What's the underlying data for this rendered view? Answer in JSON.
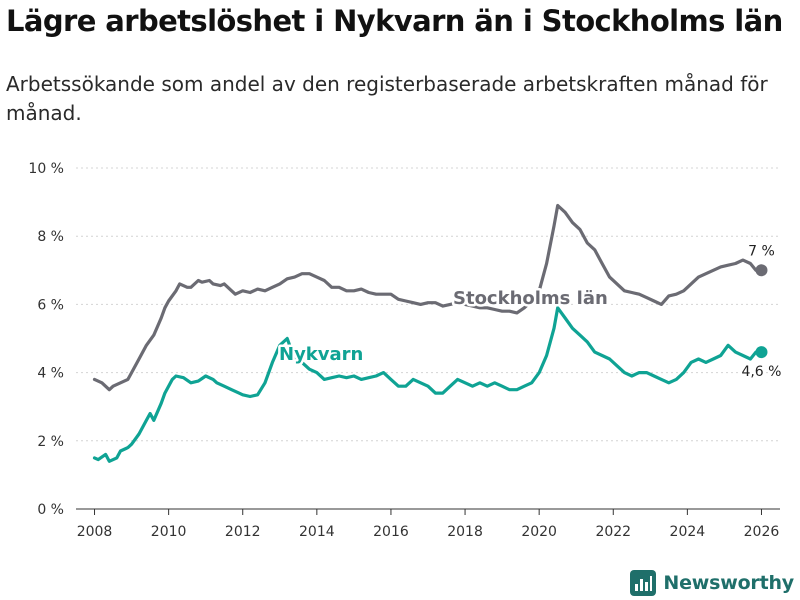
{
  "page": {
    "title": "Lägre arbetslöshet i Nykvarn än i Stockholms län",
    "subtitle": "Arbetssökande som andel av den registerbaserade arbetskraften månad för månad.",
    "brand": "Newsworthy"
  },
  "colors": {
    "stockholm": "#6b6b73",
    "nykvarn": "#0fa394",
    "grid": "#d4d4d4",
    "axis": "#333333",
    "brand": "#1f6f6a"
  },
  "chart_data": {
    "type": "line",
    "title": "Lägre arbetslöshet i Nykvarn än i Stockholms län",
    "xlabel": "",
    "ylabel": "",
    "xlim": [
      2007.5,
      2026.5
    ],
    "ylim": [
      0,
      10
    ],
    "y_ticks": [
      0,
      2,
      4,
      6,
      8,
      10
    ],
    "y_tick_labels": [
      "0 %",
      "2 %",
      "4 %",
      "6 %",
      "8 %",
      "10 %"
    ],
    "x_ticks": [
      2008,
      2010,
      2012,
      2014,
      2016,
      2018,
      2020,
      2022,
      2024,
      2026
    ],
    "x_tick_labels": [
      "2008",
      "2010",
      "2012",
      "2014",
      "2016",
      "2018",
      "2020",
      "2022",
      "2024",
      "2026"
    ],
    "grid": true,
    "series": [
      {
        "name": "Stockholms län",
        "end_label": "7 %",
        "points": [
          [
            2008.0,
            3.8
          ],
          [
            2008.2,
            3.7
          ],
          [
            2008.4,
            3.5
          ],
          [
            2008.5,
            3.6
          ],
          [
            2008.7,
            3.7
          ],
          [
            2008.9,
            3.8
          ],
          [
            2009.0,
            4.0
          ],
          [
            2009.2,
            4.4
          ],
          [
            2009.4,
            4.8
          ],
          [
            2009.6,
            5.1
          ],
          [
            2009.8,
            5.6
          ],
          [
            2009.9,
            5.9
          ],
          [
            2010.0,
            6.1
          ],
          [
            2010.2,
            6.4
          ],
          [
            2010.3,
            6.6
          ],
          [
            2010.5,
            6.5
          ],
          [
            2010.6,
            6.5
          ],
          [
            2010.8,
            6.7
          ],
          [
            2010.9,
            6.65
          ],
          [
            2011.1,
            6.7
          ],
          [
            2011.2,
            6.6
          ],
          [
            2011.4,
            6.55
          ],
          [
            2011.5,
            6.6
          ],
          [
            2011.7,
            6.4
          ],
          [
            2011.8,
            6.3
          ],
          [
            2012.0,
            6.4
          ],
          [
            2012.2,
            6.35
          ],
          [
            2012.4,
            6.45
          ],
          [
            2012.6,
            6.4
          ],
          [
            2012.8,
            6.5
          ],
          [
            2013.0,
            6.6
          ],
          [
            2013.2,
            6.75
          ],
          [
            2013.4,
            6.8
          ],
          [
            2013.6,
            6.9
          ],
          [
            2013.8,
            6.9
          ],
          [
            2014.0,
            6.8
          ],
          [
            2014.2,
            6.7
          ],
          [
            2014.4,
            6.5
          ],
          [
            2014.6,
            6.5
          ],
          [
            2014.8,
            6.4
          ],
          [
            2015.0,
            6.4
          ],
          [
            2015.2,
            6.45
          ],
          [
            2015.4,
            6.35
          ],
          [
            2015.6,
            6.3
          ],
          [
            2015.8,
            6.3
          ],
          [
            2016.0,
            6.3
          ],
          [
            2016.2,
            6.15
          ],
          [
            2016.4,
            6.1
          ],
          [
            2016.6,
            6.05
          ],
          [
            2016.8,
            6.0
          ],
          [
            2017.0,
            6.05
          ],
          [
            2017.2,
            6.05
          ],
          [
            2017.4,
            5.95
          ],
          [
            2017.6,
            6.0
          ],
          [
            2017.8,
            6.05
          ],
          [
            2018.0,
            6.0
          ],
          [
            2018.2,
            5.95
          ],
          [
            2018.4,
            5.9
          ],
          [
            2018.6,
            5.9
          ],
          [
            2018.8,
            5.85
          ],
          [
            2019.0,
            5.8
          ],
          [
            2019.2,
            5.8
          ],
          [
            2019.4,
            5.75
          ],
          [
            2019.6,
            5.9
          ],
          [
            2019.8,
            6.1
          ],
          [
            2020.0,
            6.4
          ],
          [
            2020.2,
            7.2
          ],
          [
            2020.4,
            8.3
          ],
          [
            2020.5,
            8.9
          ],
          [
            2020.7,
            8.7
          ],
          [
            2020.9,
            8.4
          ],
          [
            2021.1,
            8.2
          ],
          [
            2021.3,
            7.8
          ],
          [
            2021.5,
            7.6
          ],
          [
            2021.7,
            7.2
          ],
          [
            2021.9,
            6.8
          ],
          [
            2022.1,
            6.6
          ],
          [
            2022.3,
            6.4
          ],
          [
            2022.5,
            6.35
          ],
          [
            2022.7,
            6.3
          ],
          [
            2022.9,
            6.2
          ],
          [
            2023.1,
            6.1
          ],
          [
            2023.3,
            6.0
          ],
          [
            2023.5,
            6.25
          ],
          [
            2023.7,
            6.3
          ],
          [
            2023.9,
            6.4
          ],
          [
            2024.1,
            6.6
          ],
          [
            2024.3,
            6.8
          ],
          [
            2024.5,
            6.9
          ],
          [
            2024.7,
            7.0
          ],
          [
            2024.9,
            7.1
          ],
          [
            2025.1,
            7.15
          ],
          [
            2025.3,
            7.2
          ],
          [
            2025.5,
            7.3
          ],
          [
            2025.7,
            7.2
          ],
          [
            2025.85,
            7.0
          ],
          [
            2026.0,
            7.0
          ]
        ]
      },
      {
        "name": "Nykvarn",
        "end_label": "4,6 %",
        "points": [
          [
            2008.0,
            1.5
          ],
          [
            2008.1,
            1.45
          ],
          [
            2008.3,
            1.6
          ],
          [
            2008.4,
            1.4
          ],
          [
            2008.6,
            1.5
          ],
          [
            2008.7,
            1.7
          ],
          [
            2008.9,
            1.8
          ],
          [
            2009.0,
            1.9
          ],
          [
            2009.2,
            2.2
          ],
          [
            2009.4,
            2.6
          ],
          [
            2009.5,
            2.8
          ],
          [
            2009.6,
            2.6
          ],
          [
            2009.8,
            3.1
          ],
          [
            2009.9,
            3.4
          ],
          [
            2010.1,
            3.8
          ],
          [
            2010.2,
            3.9
          ],
          [
            2010.4,
            3.85
          ],
          [
            2010.6,
            3.7
          ],
          [
            2010.8,
            3.75
          ],
          [
            2011.0,
            3.9
          ],
          [
            2011.2,
            3.8
          ],
          [
            2011.3,
            3.7
          ],
          [
            2011.5,
            3.6
          ],
          [
            2011.7,
            3.5
          ],
          [
            2011.9,
            3.4
          ],
          [
            2012.0,
            3.35
          ],
          [
            2012.2,
            3.3
          ],
          [
            2012.4,
            3.35
          ],
          [
            2012.6,
            3.7
          ],
          [
            2012.8,
            4.3
          ],
          [
            2013.0,
            4.8
          ],
          [
            2013.2,
            5.0
          ],
          [
            2013.4,
            4.4
          ],
          [
            2013.6,
            4.3
          ],
          [
            2013.8,
            4.1
          ],
          [
            2014.0,
            4.0
          ],
          [
            2014.2,
            3.8
          ],
          [
            2014.4,
            3.85
          ],
          [
            2014.6,
            3.9
          ],
          [
            2014.8,
            3.85
          ],
          [
            2015.0,
            3.9
          ],
          [
            2015.2,
            3.8
          ],
          [
            2015.4,
            3.85
          ],
          [
            2015.6,
            3.9
          ],
          [
            2015.8,
            4.0
          ],
          [
            2016.0,
            3.8
          ],
          [
            2016.2,
            3.6
          ],
          [
            2016.4,
            3.6
          ],
          [
            2016.6,
            3.8
          ],
          [
            2016.8,
            3.7
          ],
          [
            2017.0,
            3.6
          ],
          [
            2017.2,
            3.4
          ],
          [
            2017.4,
            3.4
          ],
          [
            2017.6,
            3.6
          ],
          [
            2017.8,
            3.8
          ],
          [
            2018.0,
            3.7
          ],
          [
            2018.2,
            3.6
          ],
          [
            2018.4,
            3.7
          ],
          [
            2018.6,
            3.6
          ],
          [
            2018.8,
            3.7
          ],
          [
            2019.0,
            3.6
          ],
          [
            2019.2,
            3.5
          ],
          [
            2019.4,
            3.5
          ],
          [
            2019.6,
            3.6
          ],
          [
            2019.8,
            3.7
          ],
          [
            2020.0,
            4.0
          ],
          [
            2020.2,
            4.5
          ],
          [
            2020.4,
            5.3
          ],
          [
            2020.5,
            5.9
          ],
          [
            2020.7,
            5.6
          ],
          [
            2020.9,
            5.3
          ],
          [
            2021.1,
            5.1
          ],
          [
            2021.3,
            4.9
          ],
          [
            2021.5,
            4.6
          ],
          [
            2021.7,
            4.5
          ],
          [
            2021.9,
            4.4
          ],
          [
            2022.1,
            4.2
          ],
          [
            2022.3,
            4.0
          ],
          [
            2022.5,
            3.9
          ],
          [
            2022.7,
            4.0
          ],
          [
            2022.9,
            4.0
          ],
          [
            2023.1,
            3.9
          ],
          [
            2023.3,
            3.8
          ],
          [
            2023.5,
            3.7
          ],
          [
            2023.7,
            3.8
          ],
          [
            2023.9,
            4.0
          ],
          [
            2024.1,
            4.3
          ],
          [
            2024.3,
            4.4
          ],
          [
            2024.5,
            4.3
          ],
          [
            2024.7,
            4.4
          ],
          [
            2024.9,
            4.5
          ],
          [
            2025.1,
            4.8
          ],
          [
            2025.3,
            4.6
          ],
          [
            2025.5,
            4.5
          ],
          [
            2025.7,
            4.4
          ],
          [
            2025.85,
            4.6
          ],
          [
            2026.0,
            4.6
          ]
        ]
      }
    ]
  }
}
